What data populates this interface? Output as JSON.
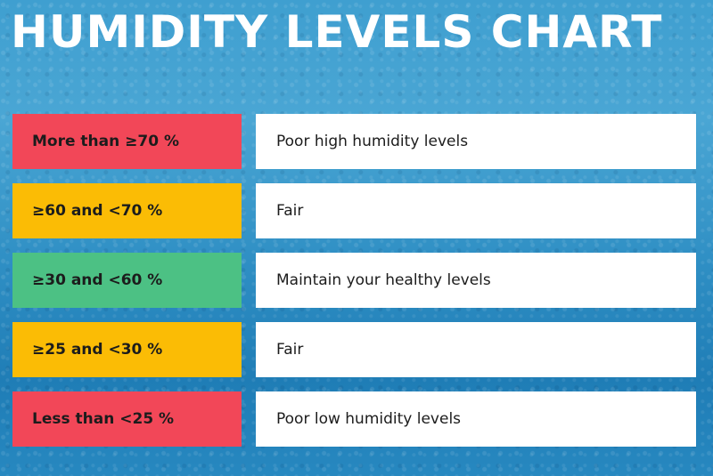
{
  "title": "HUMIDITY LEVELS CHART",
  "rows": [
    {
      "range": "More than ≥70 %",
      "description": "Poor high humidity levels",
      "color": "#f24758"
    },
    {
      "range": "≥60 and <70 %",
      "description": "Fair",
      "color": "#fbbc05"
    },
    {
      "range": "≥30 and <60 %",
      "description": "Maintain your healthy levels",
      "color": "#4cc184"
    },
    {
      "range": "≥25 and <30 %",
      "description": "Fair",
      "color": "#fbbc05"
    },
    {
      "range": "Less than <25 %",
      "description": "Poor low humidity levels",
      "color": "#f24758"
    }
  ]
}
